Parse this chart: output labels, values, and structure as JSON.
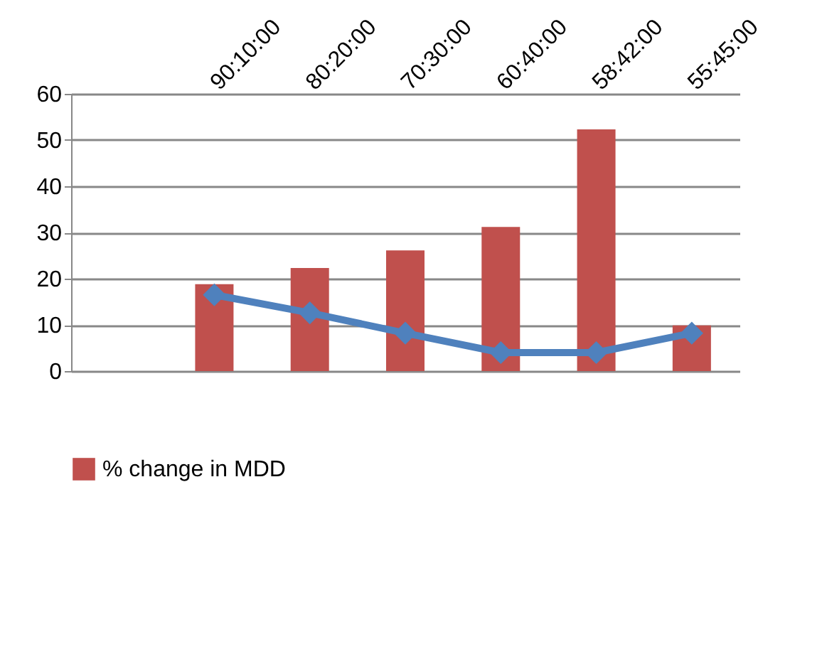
{
  "chart_data": {
    "type": "bar",
    "categories": [
      null,
      "90:10:00",
      "80:20:00",
      "70:30:00",
      "60:40:00",
      "58:42:00",
      "55:45:00"
    ],
    "series": [
      {
        "name": "% change in MDD",
        "color": "#c0504d",
        "values": [
          null,
          18.8,
          22.3,
          26.1,
          31.2,
          52.3,
          9.9
        ]
      },
      {
        "type": "line",
        "color": "#4f81bd",
        "marker": "diamond",
        "values": [
          null,
          16.5,
          12.6,
          8.2,
          4.0,
          4.0,
          8.2
        ]
      }
    ],
    "ylim": [
      0,
      60
    ],
    "yticks": [
      0,
      10,
      20,
      30,
      40,
      50,
      60
    ],
    "grid": "y",
    "legend": "bottom"
  }
}
